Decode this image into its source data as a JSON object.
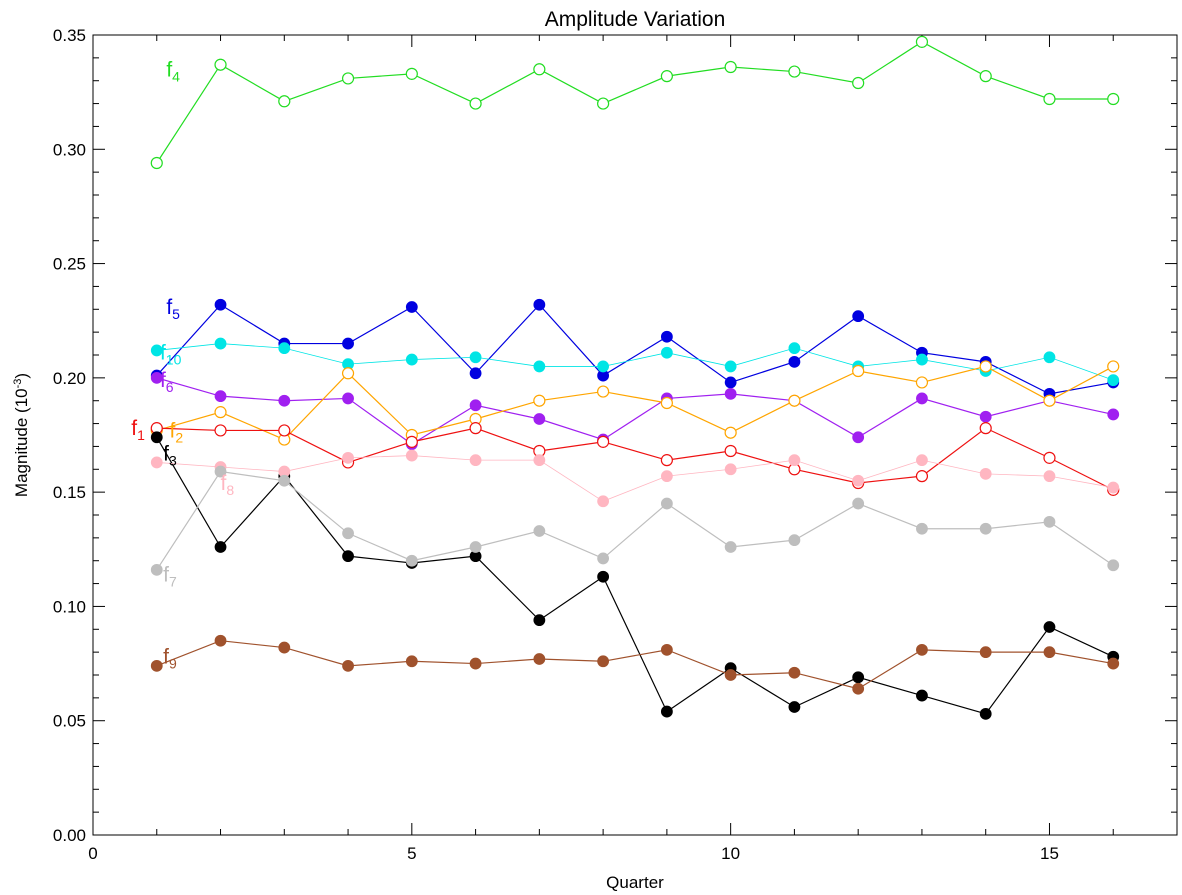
{
  "chart_data": {
    "type": "line",
    "title": "Amplitude Variation",
    "xlabel": "Quarter",
    "ylabel_main": "Magnitude (10",
    "ylabel_sup": "-3",
    "ylabel_end": ")",
    "xlim": [
      0,
      17
    ],
    "ylim": [
      0,
      0.35
    ],
    "x_ticks": [
      0,
      5,
      10,
      15
    ],
    "x_tick_labels": [
      "0",
      "5",
      "10",
      "15"
    ],
    "y_ticks": [
      0,
      0.05,
      0.1,
      0.15,
      0.2,
      0.25,
      0.3,
      0.35
    ],
    "y_tick_labels": [
      "0.00",
      "0.05",
      "0.10",
      "0.15",
      "0.20",
      "0.25",
      "0.30",
      "0.35"
    ],
    "grid": false,
    "x": [
      1,
      2,
      3,
      4,
      5,
      6,
      7,
      8,
      9,
      10,
      11,
      12,
      13,
      14,
      15,
      16
    ],
    "series": [
      {
        "label_base": "f",
        "label_sub": "4",
        "color": "#22dd22",
        "marker": "open",
        "label_pos": [
          1.15,
          0.335
        ],
        "values": [
          0.294,
          0.337,
          0.321,
          0.331,
          0.333,
          0.32,
          0.335,
          0.32,
          0.332,
          0.336,
          0.334,
          0.329,
          0.347,
          0.332,
          0.322,
          0.322
        ]
      },
      {
        "label_base": "f",
        "label_sub": "5",
        "color": "#0000e0",
        "marker": "filled",
        "label_pos": [
          1.15,
          0.231
        ],
        "values": [
          0.201,
          0.232,
          0.215,
          0.215,
          0.231,
          0.202,
          0.232,
          0.201,
          0.218,
          0.198,
          0.207,
          0.227,
          0.211,
          0.207,
          0.193,
          0.198
        ]
      },
      {
        "label_base": "f",
        "label_sub": "10",
        "color": "#00e5e5",
        "marker": "filled",
        "thin": true,
        "label_pos": [
          1.05,
          0.211
        ],
        "values": [
          0.212,
          0.215,
          0.213,
          0.206,
          0.208,
          0.209,
          0.205,
          0.205,
          0.211,
          0.205,
          0.213,
          0.205,
          0.208,
          0.203,
          0.209,
          0.199
        ]
      },
      {
        "label_base": "f",
        "label_sub": "6",
        "color": "#a020f0",
        "marker": "filled",
        "label_pos": [
          1.05,
          0.199
        ],
        "values": [
          0.2,
          0.192,
          0.19,
          0.191,
          0.171,
          0.188,
          0.182,
          0.173,
          0.191,
          0.193,
          0.19,
          0.174,
          0.191,
          0.183,
          0.19,
          0.184
        ]
      },
      {
        "label_base": "f",
        "label_sub": "2",
        "color": "#ffa500",
        "marker": "open",
        "label_pos": [
          1.2,
          0.177
        ],
        "values": [
          0.177,
          0.185,
          0.173,
          0.202,
          0.175,
          0.182,
          0.19,
          0.194,
          0.189,
          0.176,
          0.19,
          0.203,
          0.198,
          0.205,
          0.19,
          0.205
        ]
      },
      {
        "label_base": "f",
        "label_sub": "1",
        "color": "#ee1111",
        "marker": "open",
        "label_pos": [
          0.6,
          0.178
        ],
        "values": [
          0.178,
          0.177,
          0.177,
          0.163,
          0.172,
          0.178,
          0.168,
          0.172,
          0.164,
          0.168,
          0.16,
          0.154,
          0.157,
          0.178,
          0.165,
          0.151
        ]
      },
      {
        "label_base": "f",
        "label_sub": "3",
        "color": "#000000",
        "marker": "filled",
        "label_pos": [
          1.1,
          0.167
        ],
        "values": [
          0.174,
          0.126,
          0.157,
          0.122,
          0.119,
          0.122,
          0.094,
          0.113,
          0.054,
          0.073,
          0.056,
          0.069,
          0.061,
          0.053,
          0.091,
          0.078
        ]
      },
      {
        "label_base": "f",
        "label_sub": "8",
        "color": "#ffb6c1",
        "marker": "filled",
        "thin": true,
        "label_pos": [
          2.0,
          0.154
        ],
        "values": [
          0.163,
          0.161,
          0.159,
          0.165,
          0.166,
          0.164,
          0.164,
          0.146,
          0.157,
          0.16,
          0.164,
          0.155,
          0.164,
          0.158,
          0.157,
          0.152
        ]
      },
      {
        "label_base": "f",
        "label_sub": "7",
        "color": "#bebebe",
        "marker": "filled",
        "label_pos": [
          1.1,
          0.114
        ],
        "values": [
          0.116,
          0.159,
          0.155,
          0.132,
          0.12,
          0.126,
          0.133,
          0.121,
          0.145,
          0.126,
          0.129,
          0.145,
          0.134,
          0.134,
          0.137,
          0.118
        ]
      },
      {
        "label_base": "f",
        "label_sub": "9",
        "color": "#a0522d",
        "marker": "filled",
        "label_pos": [
          1.1,
          0.078
        ],
        "values": [
          0.074,
          0.085,
          0.082,
          0.074,
          0.076,
          0.075,
          0.077,
          0.076,
          0.081,
          0.07,
          0.071,
          0.064,
          0.081,
          0.08,
          0.08,
          0.075
        ]
      }
    ]
  }
}
